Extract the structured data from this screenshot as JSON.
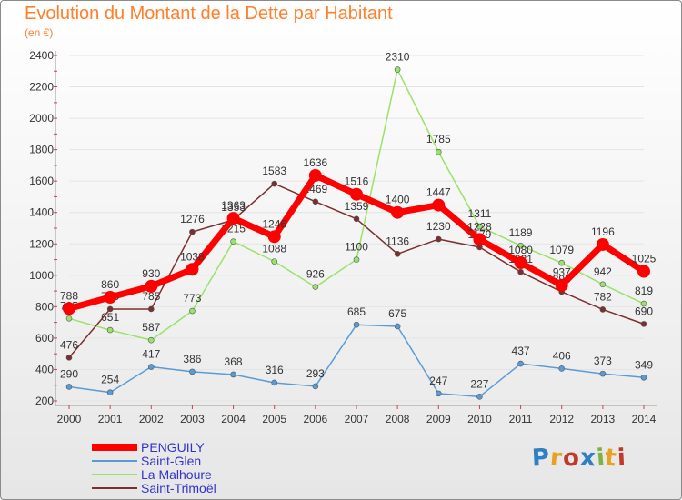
{
  "title": "Evolution du Montant de la Dette par Habitant",
  "subtitle": "(en €)",
  "brand": {
    "text": "Proxiti",
    "colors": [
      "#2e7fc4",
      "#e8a21f",
      "#c0392b",
      "#2e7fc4",
      "#7cb342",
      "#e8a21f",
      "#c0392b"
    ]
  },
  "chart_data": {
    "type": "line",
    "x": [
      2000,
      2001,
      2002,
      2003,
      2004,
      2005,
      2006,
      2007,
      2008,
      2009,
      2010,
      2011,
      2012,
      2013,
      2014
    ],
    "ylim": [
      200,
      2400
    ],
    "yticks": [
      200,
      400,
      600,
      800,
      1000,
      1200,
      1400,
      1600,
      1800,
      2000,
      2200,
      2400
    ],
    "grid": true,
    "legend_position": "bottom-left",
    "series": [
      {
        "name": "PENGUILY",
        "color": "#ff0000",
        "width": 7,
        "marker": 7,
        "values": [
          788,
          860,
          930,
          1038,
          1363,
          1246,
          1636,
          1516,
          1400,
          1447,
          1228,
          1080,
          937,
          1196,
          1025
        ]
      },
      {
        "name": "Saint-Glen",
        "color": "#5b9bd5",
        "width": 1.5,
        "marker": 3,
        "values": [
          290,
          254,
          417,
          386,
          368,
          316,
          293,
          685,
          675,
          247,
          227,
          437,
          406,
          373,
          349
        ]
      },
      {
        "name": "La Malhoure",
        "color": "#99e26b",
        "width": 1.5,
        "marker": 3,
        "values": [
          725,
          651,
          587,
          773,
          1215,
          1088,
          926,
          1100,
          2310,
          1785,
          1311,
          1189,
          1079,
          942,
          819
        ]
      },
      {
        "name": "Saint-Trimoël",
        "color": "#7b2f2f",
        "width": 1.5,
        "marker": 3,
        "values": [
          476,
          785,
          785,
          1276,
          1353,
          1583,
          1469,
          1359,
          1136,
          1230,
          1179,
          1021,
          895,
          782,
          690
        ]
      }
    ]
  }
}
